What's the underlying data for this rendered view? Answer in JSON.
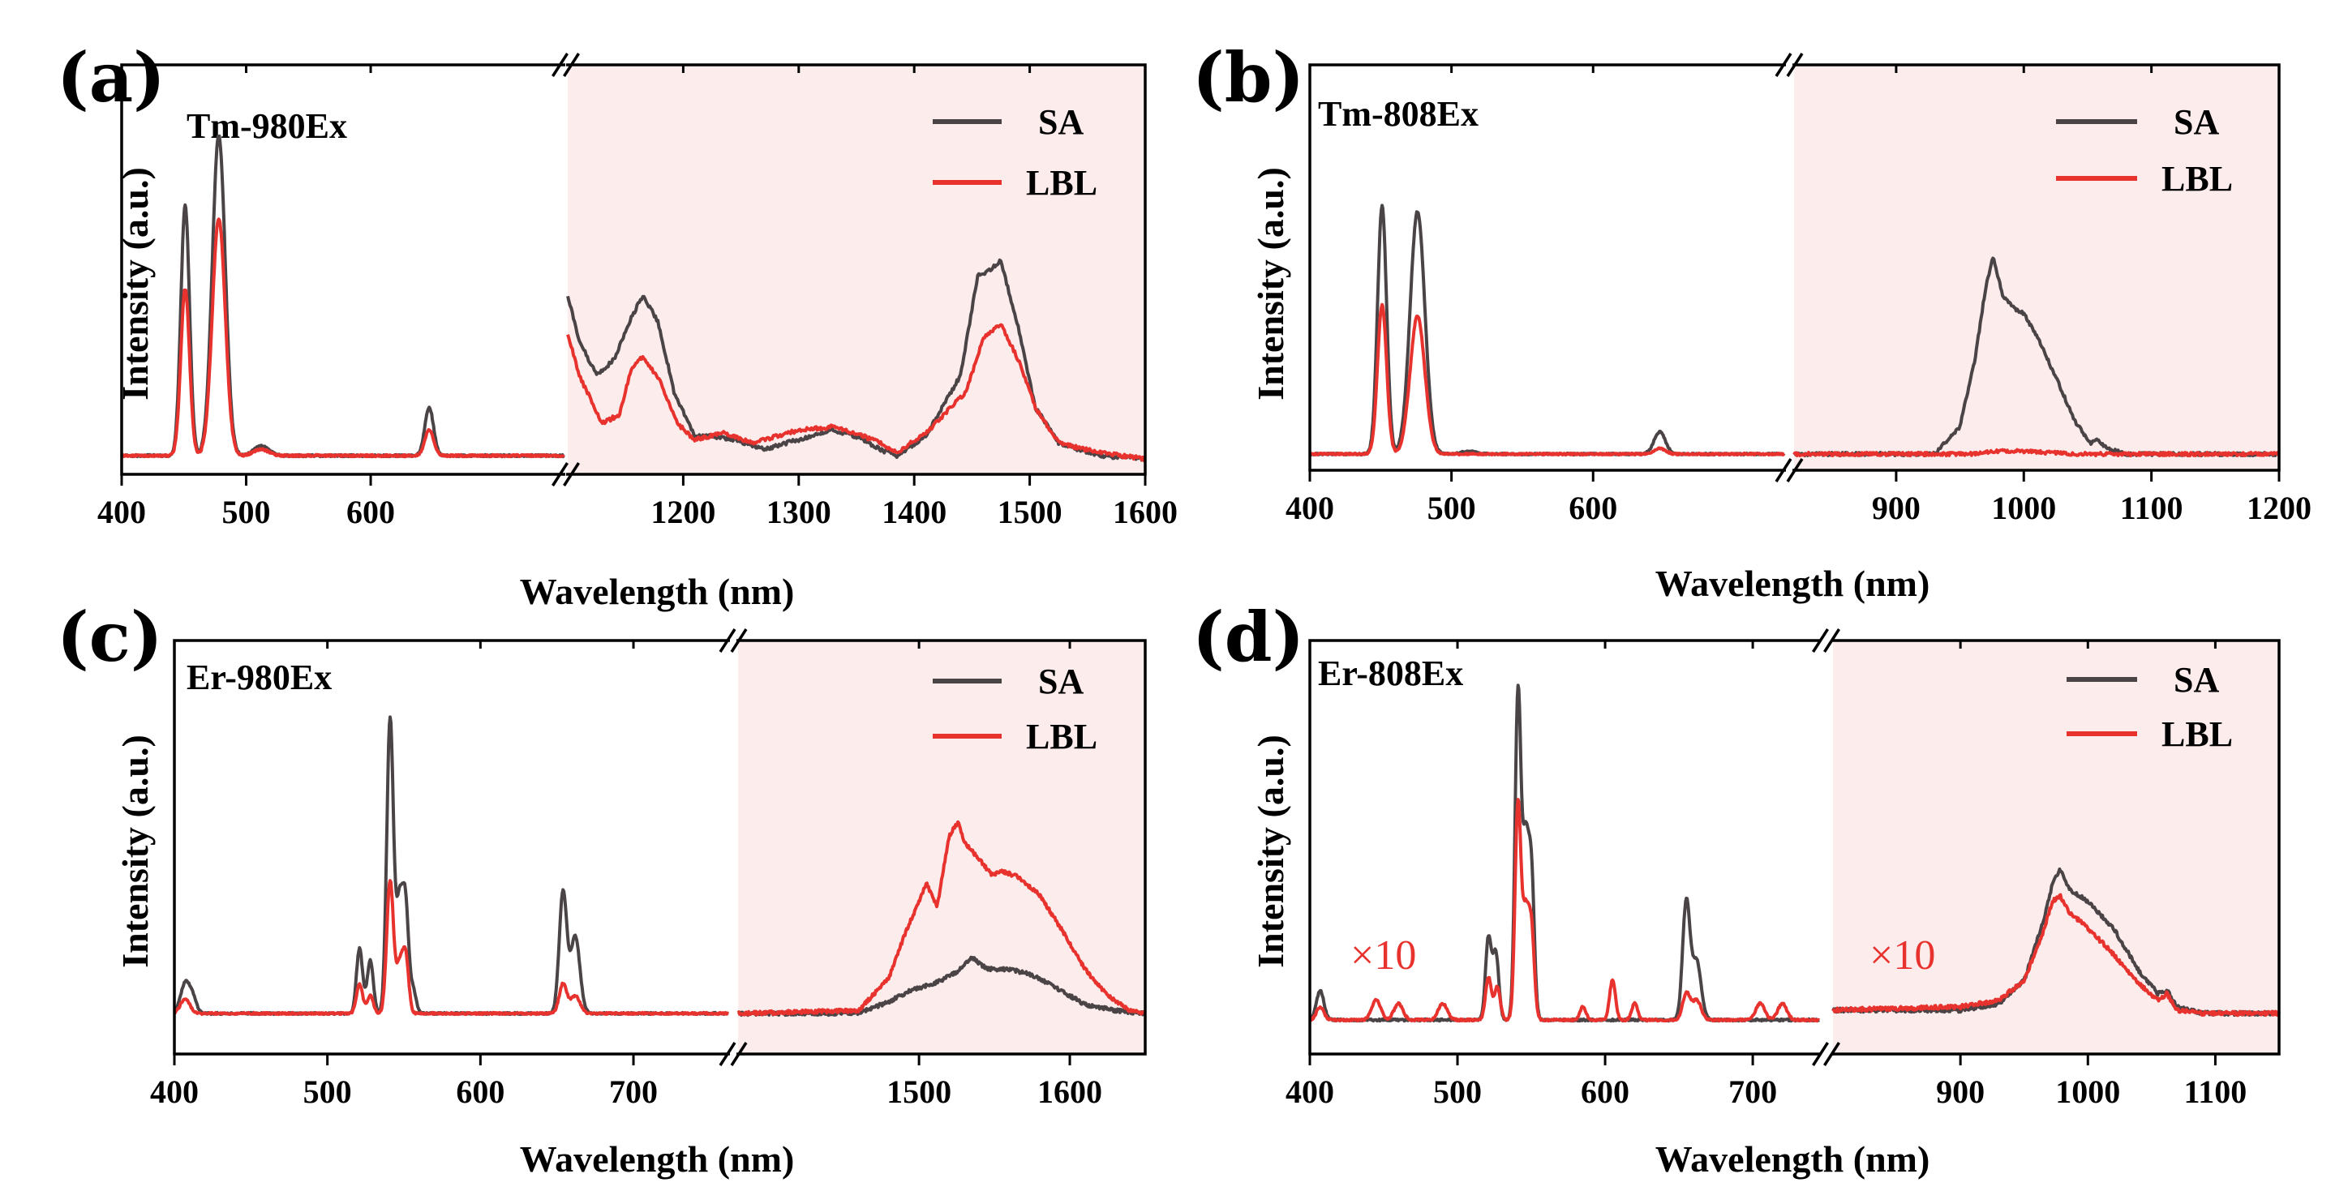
{
  "colors": {
    "sa": "#4a4446",
    "lbl": "#e8322e",
    "nir_shade": "#fdecec",
    "axis": "#000000"
  },
  "chart_data": [
    {
      "type": "line",
      "panel": "(a)",
      "title": "Tm-980Ex",
      "xlabel": "Wavelength (nm)",
      "ylabel": "Intensity (a.u.)",
      "legend": {
        "position": "top-right",
        "entries": [
          "SA",
          "LBL"
        ]
      },
      "segments": [
        {
          "xlim": [
            400,
            755
          ],
          "ticks": [
            400,
            500,
            600
          ],
          "shaded": false
        },
        {
          "xlim": [
            1100,
            1600
          ],
          "ticks": [
            1200,
            1300,
            1400,
            1500,
            1600
          ],
          "shaded": true
        }
      ],
      "ylim": [
        0,
        1.0
      ],
      "series": [
        {
          "name": "SA",
          "peaks": [
            [
              451,
              0.78,
              3.5
            ],
            [
              478,
              1.0,
              5.2
            ],
            [
              512,
              0.03,
              6
            ],
            [
              647,
              0.15,
              3.5
            ]
          ],
          "nir": [
            [
              1100,
              0.5
            ],
            [
              1110,
              0.36
            ],
            [
              1125,
              0.25
            ],
            [
              1140,
              0.3
            ],
            [
              1155,
              0.43
            ],
            [
              1165,
              0.5
            ],
            [
              1178,
              0.42
            ],
            [
              1192,
              0.2
            ],
            [
              1210,
              0.06
            ],
            [
              1225,
              0.06
            ],
            [
              1245,
              0.05
            ],
            [
              1270,
              0.02
            ],
            [
              1300,
              0.05
            ],
            [
              1330,
              0.08
            ],
            [
              1350,
              0.06
            ],
            [
              1370,
              0.02
            ],
            [
              1385,
              0.0
            ],
            [
              1410,
              0.06
            ],
            [
              1440,
              0.25
            ],
            [
              1455,
              0.56
            ],
            [
              1460,
              0.57
            ],
            [
              1465,
              0.58
            ],
            [
              1475,
              0.61
            ],
            [
              1490,
              0.4
            ],
            [
              1505,
              0.15
            ],
            [
              1525,
              0.04
            ],
            [
              1560,
              0.0
            ],
            [
              1600,
              -0.01
            ]
          ]
        },
        {
          "name": "LBL",
          "peaks": [
            [
              451,
              0.52,
              3.5
            ],
            [
              478,
              0.74,
              5.2
            ],
            [
              512,
              0.02,
              6
            ],
            [
              647,
              0.08,
              3.5
            ]
          ],
          "nir": [
            [
              1100,
              0.38
            ],
            [
              1110,
              0.25
            ],
            [
              1130,
              0.1
            ],
            [
              1145,
              0.13
            ],
            [
              1155,
              0.27
            ],
            [
              1165,
              0.31
            ],
            [
              1180,
              0.23
            ],
            [
              1195,
              0.1
            ],
            [
              1210,
              0.05
            ],
            [
              1235,
              0.07
            ],
            [
              1260,
              0.04
            ],
            [
              1280,
              0.06
            ],
            [
              1300,
              0.08
            ],
            [
              1330,
              0.09
            ],
            [
              1350,
              0.07
            ],
            [
              1370,
              0.04
            ],
            [
              1385,
              0.01
            ],
            [
              1410,
              0.07
            ],
            [
              1445,
              0.2
            ],
            [
              1460,
              0.37
            ],
            [
              1475,
              0.41
            ],
            [
              1490,
              0.3
            ],
            [
              1505,
              0.15
            ],
            [
              1525,
              0.04
            ],
            [
              1560,
              0.01
            ],
            [
              1600,
              -0.01
            ]
          ]
        }
      ]
    },
    {
      "type": "line",
      "panel": "(b)",
      "title": "Tm-808Ex",
      "xlabel": "Wavelength (nm)",
      "ylabel": "Intensity (a.u.)",
      "legend": {
        "position": "top-right",
        "entries": [
          "SA",
          "LBL"
        ]
      },
      "segments": [
        {
          "xlim": [
            400,
            735
          ],
          "ticks": [
            400,
            500,
            600
          ],
          "shaded": false
        },
        {
          "xlim": [
            820,
            1200
          ],
          "ticks": [
            900,
            1000,
            1100,
            1200
          ],
          "shaded": true
        }
      ],
      "ylim": [
        0,
        1.0
      ],
      "series": [
        {
          "name": "SA",
          "peaks": [
            [
              451,
              0.9,
              3.2
            ],
            [
              476,
              0.88,
              5.2
            ],
            [
              512,
              0.01,
              5
            ],
            [
              647,
              0.08,
              4
            ]
          ],
          "nir": [
            [
              820,
              0.0
            ],
            [
              930,
              0.0
            ],
            [
              950,
              0.1
            ],
            [
              962,
              0.35
            ],
            [
              970,
              0.6
            ],
            [
              976,
              0.72
            ],
            [
              983,
              0.58
            ],
            [
              992,
              0.53
            ],
            [
              1000,
              0.51
            ],
            [
              1010,
              0.43
            ],
            [
              1025,
              0.28
            ],
            [
              1040,
              0.12
            ],
            [
              1052,
              0.04
            ],
            [
              1058,
              0.05
            ],
            [
              1065,
              0.02
            ],
            [
              1080,
              0.0
            ],
            [
              1200,
              0.0
            ]
          ]
        },
        {
          "name": "LBL",
          "peaks": [
            [
              451,
              0.54,
              3.2
            ],
            [
              476,
              0.5,
              5.2
            ],
            [
              647,
              0.02,
              4
            ]
          ],
          "nir": [
            [
              820,
              0.0
            ],
            [
              960,
              0.0
            ],
            [
              980,
              0.01
            ],
            [
              1000,
              0.01
            ],
            [
              1040,
              0.0
            ],
            [
              1200,
              0.0
            ]
          ]
        }
      ]
    },
    {
      "type": "line",
      "panel": "(c)",
      "title": "Er-980Ex",
      "xlabel": "Wavelength (nm)",
      "ylabel": "Intensity (a.u.)",
      "legend": {
        "position": "top-right",
        "entries": [
          "SA",
          "LBL"
        ]
      },
      "segments": [
        {
          "xlim": [
            400,
            762
          ],
          "ticks": [
            400,
            500,
            600,
            700
          ],
          "shaded": false
        },
        {
          "xlim": [
            1380,
            1650
          ],
          "ticks": [
            1500,
            1600
          ],
          "shaded": true
        }
      ],
      "ylim": [
        0,
        1.0
      ],
      "series": [
        {
          "name": "SA",
          "peaks": [
            [
              407,
              0.1,
              3
            ],
            [
              412,
              0.05,
              2.5
            ],
            [
              521,
              0.22,
              2
            ],
            [
              528,
              0.18,
              2
            ],
            [
              541,
              1.0,
              2.2
            ],
            [
              547,
              0.35,
              2
            ],
            [
              551,
              0.37,
              2
            ],
            [
              556,
              0.08,
              2
            ],
            [
              654,
              0.41,
              2.5
            ],
            [
              662,
              0.26,
              3
            ]
          ],
          "nir": [
            [
              1380,
              0.0
            ],
            [
              1460,
              0.0
            ],
            [
              1480,
              0.04
            ],
            [
              1495,
              0.08
            ],
            [
              1510,
              0.1
            ],
            [
              1525,
              0.14
            ],
            [
              1535,
              0.19
            ],
            [
              1545,
              0.15
            ],
            [
              1560,
              0.15
            ],
            [
              1575,
              0.13
            ],
            [
              1590,
              0.09
            ],
            [
              1610,
              0.03
            ],
            [
              1630,
              0.01
            ],
            [
              1650,
              0.0
            ]
          ]
        },
        {
          "name": "LBL",
          "peaks": [
            [
              407,
              0.05,
              3
            ],
            [
              521,
              0.1,
              2
            ],
            [
              528,
              0.06,
              2
            ],
            [
              541,
              0.45,
              2.2
            ],
            [
              547,
              0.15,
              2
            ],
            [
              551,
              0.2,
              2
            ],
            [
              654,
              0.1,
              2.5
            ],
            [
              662,
              0.06,
              3
            ]
          ],
          "nir": [
            [
              1380,
              0.0
            ],
            [
              1460,
              0.01
            ],
            [
              1480,
              0.12
            ],
            [
              1490,
              0.26
            ],
            [
              1495,
              0.32
            ],
            [
              1505,
              0.44
            ],
            [
              1512,
              0.36
            ],
            [
              1520,
              0.6
            ],
            [
              1526,
              0.65
            ],
            [
              1530,
              0.58
            ],
            [
              1540,
              0.52
            ],
            [
              1548,
              0.47
            ],
            [
              1556,
              0.48
            ],
            [
              1566,
              0.46
            ],
            [
              1580,
              0.4
            ],
            [
              1595,
              0.28
            ],
            [
              1610,
              0.15
            ],
            [
              1625,
              0.06
            ],
            [
              1640,
              0.01
            ],
            [
              1650,
              0.0
            ]
          ]
        }
      ]
    },
    {
      "type": "line",
      "panel": "(d)",
      "title": "Er-808Ex",
      "xlabel": "Wavelength (nm)",
      "ylabel": "Intensity (a.u.)",
      "legend": {
        "position": "top-right",
        "entries": [
          "SA",
          "LBL"
        ]
      },
      "annotations": [
        "×10",
        "×10"
      ],
      "segments": [
        {
          "xlim": [
            400,
            745
          ],
          "ticks": [
            400,
            500,
            600,
            700
          ],
          "shaded": false
        },
        {
          "xlim": [
            800,
            1150
          ],
          "ticks": [
            900,
            1000,
            1100
          ],
          "shaded": true
        }
      ],
      "ylim": [
        0,
        1.0
      ],
      "series": [
        {
          "name": "SA",
          "peaks": [
            [
              407,
              0.09,
              2.5
            ],
            [
              521,
              0.25,
              2
            ],
            [
              526,
              0.2,
              2
            ],
            [
              541,
              1.0,
              2
            ],
            [
              546,
              0.5,
              2
            ],
            [
              550,
              0.45,
              2
            ],
            [
              655,
              0.36,
              2.5
            ],
            [
              662,
              0.18,
              3
            ]
          ],
          "nir": [
            [
              800,
              0.03
            ],
            [
              900,
              0.03
            ],
            [
              930,
              0.05
            ],
            [
              950,
              0.12
            ],
            [
              965,
              0.3
            ],
            [
              972,
              0.41
            ],
            [
              978,
              0.46
            ],
            [
              985,
              0.4
            ],
            [
              1000,
              0.36
            ],
            [
              1020,
              0.28
            ],
            [
              1040,
              0.15
            ],
            [
              1055,
              0.08
            ],
            [
              1062,
              0.09
            ],
            [
              1070,
              0.04
            ],
            [
              1090,
              0.02
            ],
            [
              1150,
              0.02
            ]
          ]
        },
        {
          "name": "LBL",
          "peaks": [
            [
              407,
              0.04,
              2.5
            ],
            [
              445,
              0.06,
              3
            ],
            [
              460,
              0.05,
              3
            ],
            [
              490,
              0.05,
              3
            ],
            [
              521,
              0.13,
              2
            ],
            [
              527,
              0.1,
              2
            ],
            [
              541,
              0.66,
              2
            ],
            [
              546,
              0.3,
              2
            ],
            [
              550,
              0.28,
              2
            ],
            [
              585,
              0.04,
              2
            ],
            [
              605,
              0.12,
              2
            ],
            [
              620,
              0.05,
              2
            ],
            [
              655,
              0.08,
              2.5
            ],
            [
              662,
              0.06,
              3
            ],
            [
              705,
              0.05,
              3
            ],
            [
              720,
              0.05,
              3
            ]
          ],
          "nir": [
            [
              800,
              0.03
            ],
            [
              900,
              0.04
            ],
            [
              930,
              0.06
            ],
            [
              950,
              0.12
            ],
            [
              965,
              0.27
            ],
            [
              972,
              0.36
            ],
            [
              978,
              0.38
            ],
            [
              985,
              0.33
            ],
            [
              1000,
              0.28
            ],
            [
              1020,
              0.2
            ],
            [
              1040,
              0.11
            ],
            [
              1055,
              0.06
            ],
            [
              1062,
              0.08
            ],
            [
              1070,
              0.03
            ],
            [
              1090,
              0.02
            ],
            [
              1150,
              0.02
            ]
          ]
        }
      ]
    }
  ]
}
